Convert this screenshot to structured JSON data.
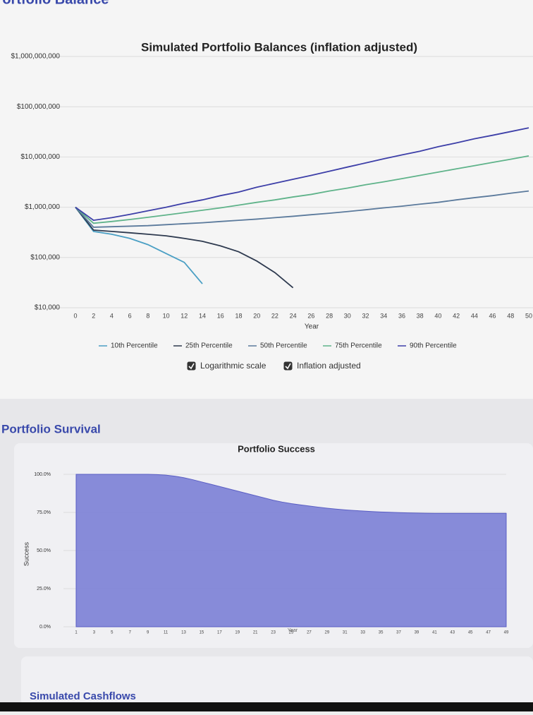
{
  "page": {
    "top_heading": "Portfolio Balance",
    "survival_heading": "Portfolio Survival",
    "cashflows_heading": "Simulated Cashflows"
  },
  "controls": [
    {
      "label": "Logarithmic scale",
      "checked": true
    },
    {
      "label": "Inflation adjusted",
      "checked": true
    }
  ],
  "chart_data": [
    {
      "type": "line",
      "title": "Simulated Portfolio Balances (inflation adjusted)",
      "x_label": "Year",
      "log_scale": true,
      "grid": true,
      "x": [
        0,
        2,
        4,
        6,
        8,
        10,
        12,
        14,
        16,
        18,
        20,
        22,
        24,
        26,
        28,
        30,
        32,
        34,
        36,
        38,
        40,
        42,
        44,
        46,
        48,
        50
      ],
      "xlim": [
        0,
        50
      ],
      "xticks": [
        0,
        2,
        4,
        6,
        8,
        10,
        12,
        14,
        16,
        18,
        20,
        22,
        24,
        26,
        28,
        30,
        32,
        34,
        36,
        38,
        40,
        42,
        44,
        46,
        48,
        50
      ],
      "ylim": [
        10000,
        1000000000
      ],
      "yticks": [
        {
          "value": 10000,
          "label": "$10,000"
        },
        {
          "value": 100000,
          "label": "$100,000"
        },
        {
          "value": 1000000,
          "label": "$1,000,000"
        },
        {
          "value": 10000000,
          "label": "$10,000,000"
        },
        {
          "value": 100000000,
          "label": "$100,000,000"
        },
        {
          "value": 1000000000,
          "label": "$1,000,000,000"
        }
      ],
      "series": [
        {
          "name": "10th Percentile",
          "color": "#4a9fc4",
          "values": [
            1000000,
            330000,
            290000,
            240000,
            180000,
            120000,
            80000,
            30000,
            null,
            null,
            null,
            null,
            null,
            null,
            null,
            null,
            null,
            null,
            null,
            null,
            null,
            null,
            null,
            null,
            null,
            null
          ]
        },
        {
          "name": "25th Percentile",
          "color": "#2e3a4f",
          "values": [
            1000000,
            350000,
            330000,
            310000,
            290000,
            270000,
            240000,
            210000,
            170000,
            130000,
            85000,
            50000,
            25000,
            null,
            null,
            null,
            null,
            null,
            null,
            null,
            null,
            null,
            null,
            null,
            null,
            null
          ]
        },
        {
          "name": "50th Percentile",
          "color": "#5b7a9c",
          "values": [
            1000000,
            400000,
            410000,
            420000,
            430000,
            450000,
            470000,
            490000,
            520000,
            550000,
            580000,
            620000,
            660000,
            710000,
            760000,
            820000,
            890000,
            970000,
            1050000,
            1150000,
            1250000,
            1400000,
            1550000,
            1700000,
            1900000,
            2100000
          ]
        },
        {
          "name": "75th Percentile",
          "color": "#5fb38a",
          "values": [
            1000000,
            480000,
            520000,
            570000,
            630000,
            700000,
            780000,
            870000,
            970000,
            1100000,
            1250000,
            1400000,
            1600000,
            1800000,
            2100000,
            2400000,
            2800000,
            3200000,
            3700000,
            4300000,
            5000000,
            5800000,
            6700000,
            7800000,
            9000000,
            10500000
          ]
        },
        {
          "name": "90th Percentile",
          "color": "#3d3fa8",
          "values": [
            1000000,
            550000,
            620000,
            720000,
            850000,
            1000000,
            1200000,
            1400000,
            1700000,
            2000000,
            2500000,
            3000000,
            3600000,
            4300000,
            5200000,
            6300000,
            7600000,
            9200000,
            11000000,
            13000000,
            16000000,
            19000000,
            23000000,
            27000000,
            32000000,
            38000000
          ]
        }
      ]
    },
    {
      "type": "area",
      "title": "Portfolio Success",
      "x_label": "Year",
      "y_label": "Success",
      "color": "#7b7fd6",
      "grid": true,
      "x": [
        1,
        2,
        3,
        4,
        5,
        6,
        7,
        8,
        9,
        10,
        11,
        12,
        13,
        14,
        15,
        16,
        17,
        18,
        19,
        20,
        21,
        22,
        23,
        24,
        25,
        26,
        27,
        28,
        29,
        30,
        31,
        32,
        33,
        34,
        35,
        36,
        37,
        38,
        39,
        40,
        41,
        42,
        43,
        44,
        45,
        46,
        47,
        48,
        49
      ],
      "values": [
        100,
        100,
        100,
        100,
        100,
        100,
        100,
        100,
        100,
        99.8,
        99.5,
        98.8,
        97.8,
        96.5,
        95,
        93.5,
        92,
        90.5,
        89,
        87.5,
        86,
        84.5,
        83,
        81.8,
        80.8,
        80,
        79.2,
        78.5,
        77.8,
        77.2,
        76.7,
        76.3,
        75.9,
        75.6,
        75.3,
        75.1,
        74.9,
        74.7,
        74.6,
        74.5,
        74.4,
        74.4,
        74.4,
        74.4,
        74.4,
        74.4,
        74.4,
        74.4,
        74.4
      ],
      "xlim": [
        1,
        49
      ],
      "xticks": [
        1,
        3,
        5,
        7,
        9,
        11,
        13,
        15,
        17,
        19,
        21,
        23,
        25,
        27,
        29,
        31,
        33,
        35,
        37,
        39,
        41,
        43,
        45,
        47,
        49
      ],
      "ylim": [
        0,
        100
      ],
      "yticks": [
        {
          "value": 0,
          "label": "0.0%"
        },
        {
          "value": 25,
          "label": "25.0%"
        },
        {
          "value": 50,
          "label": "50.0%"
        },
        {
          "value": 75,
          "label": "75.0%"
        },
        {
          "value": 100,
          "label": "100.0%"
        }
      ]
    }
  ]
}
